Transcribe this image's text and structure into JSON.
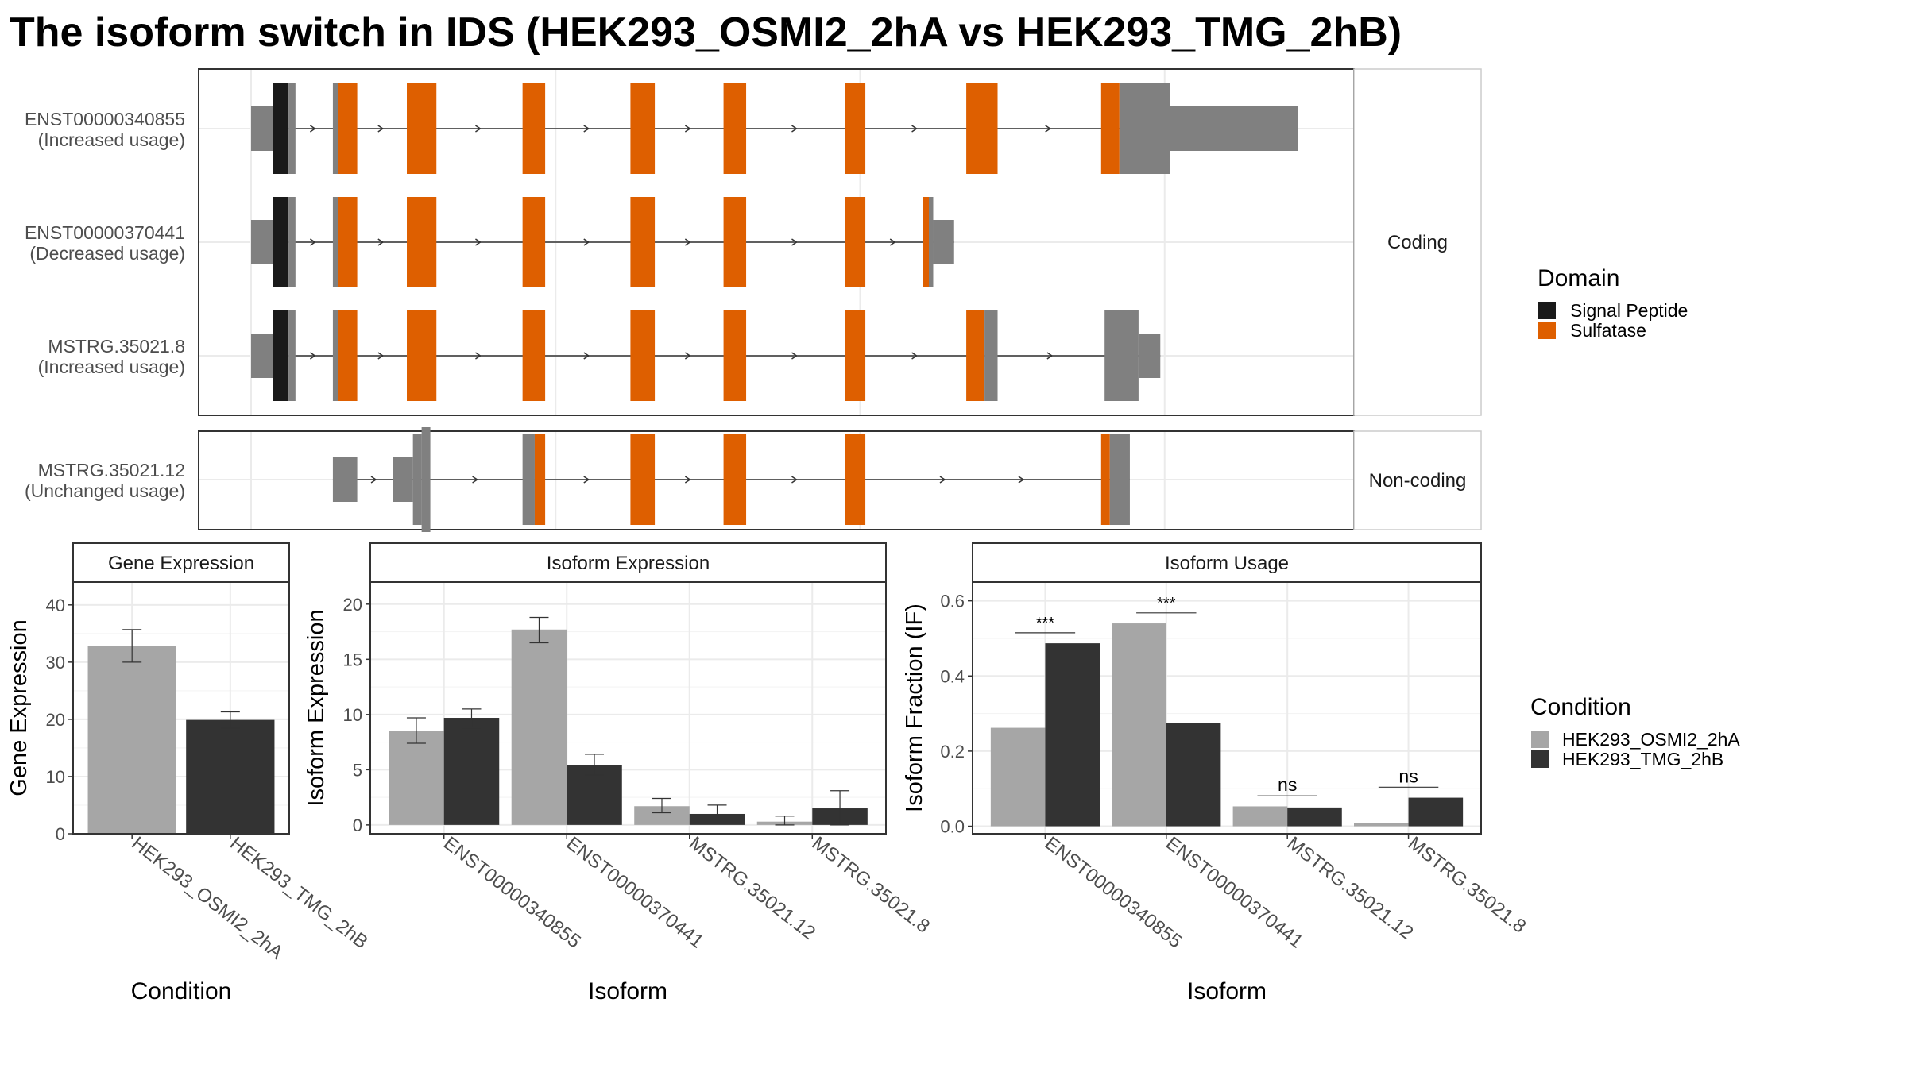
{
  "title": "The isoform switch in IDS (HEK293_OSMI2_2hA vs HEK293_TMG_2hB)",
  "colors": {
    "utr": "#808080",
    "signal_peptide": "#1a1a1a",
    "sulfatase": "#de5f00",
    "cond_a": "#a6a6a6",
    "cond_b": "#333333"
  },
  "structure": {
    "facets": [
      {
        "label": "Coding",
        "transcripts": [
          0,
          1,
          2
        ]
      },
      {
        "label": "Non-coding",
        "transcripts": [
          3
        ]
      }
    ],
    "transcripts": [
      {
        "id": "ENST00000340855",
        "usage": "(Increased usage)",
        "segments": [
          {
            "s": 0,
            "e": 2.5,
            "t": "utr",
            "h": "thin"
          },
          {
            "s": 2.5,
            "e": 4.3,
            "t": "signal_peptide",
            "h": "full"
          },
          {
            "s": 4.3,
            "e": 5.1,
            "t": "utr",
            "h": "full"
          },
          {
            "s": 9.4,
            "e": 10.0,
            "t": "utr",
            "h": "full"
          },
          {
            "s": 10.0,
            "e": 12.2,
            "t": "sulfatase",
            "h": "full"
          },
          {
            "s": 17.9,
            "e": 21.3,
            "t": "sulfatase",
            "h": "full"
          },
          {
            "s": 31.2,
            "e": 33.8,
            "t": "sulfatase",
            "h": "full"
          },
          {
            "s": 43.6,
            "e": 46.4,
            "t": "sulfatase",
            "h": "full"
          },
          {
            "s": 54.3,
            "e": 56.9,
            "t": "sulfatase",
            "h": "full"
          },
          {
            "s": 68.3,
            "e": 70.6,
            "t": "sulfatase",
            "h": "full"
          },
          {
            "s": 82.2,
            "e": 85.8,
            "t": "sulfatase",
            "h": "full"
          },
          {
            "s": 97.7,
            "e": 99.8,
            "t": "sulfatase",
            "h": "full"
          },
          {
            "s": 99.8,
            "e": 105.6,
            "t": "utr",
            "h": "full"
          },
          {
            "s": 105.6,
            "e": 120.3,
            "t": "utr",
            "h": "thin"
          }
        ]
      },
      {
        "id": "ENST00000370441",
        "usage": "(Decreased usage)",
        "segments": [
          {
            "s": 0,
            "e": 2.5,
            "t": "utr",
            "h": "thin"
          },
          {
            "s": 2.5,
            "e": 4.3,
            "t": "signal_peptide",
            "h": "full"
          },
          {
            "s": 4.3,
            "e": 5.1,
            "t": "utr",
            "h": "full"
          },
          {
            "s": 9.4,
            "e": 10.0,
            "t": "utr",
            "h": "full"
          },
          {
            "s": 10.0,
            "e": 12.2,
            "t": "sulfatase",
            "h": "full"
          },
          {
            "s": 17.9,
            "e": 21.3,
            "t": "sulfatase",
            "h": "full"
          },
          {
            "s": 31.2,
            "e": 33.8,
            "t": "sulfatase",
            "h": "full"
          },
          {
            "s": 43.6,
            "e": 46.4,
            "t": "sulfatase",
            "h": "full"
          },
          {
            "s": 54.3,
            "e": 56.9,
            "t": "sulfatase",
            "h": "full"
          },
          {
            "s": 68.3,
            "e": 70.6,
            "t": "sulfatase",
            "h": "full"
          },
          {
            "s": 77.2,
            "e": 77.9,
            "t": "sulfatase",
            "h": "full"
          },
          {
            "s": 77.9,
            "e": 78.4,
            "t": "utr",
            "h": "full"
          },
          {
            "s": 78.4,
            "e": 80.8,
            "t": "utr",
            "h": "thin"
          }
        ]
      },
      {
        "id": "MSTRG.35021.8",
        "usage": "(Increased usage)",
        "segments": [
          {
            "s": 0,
            "e": 2.5,
            "t": "utr",
            "h": "thin"
          },
          {
            "s": 2.5,
            "e": 4.3,
            "t": "signal_peptide",
            "h": "full"
          },
          {
            "s": 4.3,
            "e": 5.1,
            "t": "utr",
            "h": "full"
          },
          {
            "s": 9.4,
            "e": 10.0,
            "t": "utr",
            "h": "full"
          },
          {
            "s": 10.0,
            "e": 12.2,
            "t": "sulfatase",
            "h": "full"
          },
          {
            "s": 17.9,
            "e": 21.3,
            "t": "sulfatase",
            "h": "full"
          },
          {
            "s": 31.2,
            "e": 33.8,
            "t": "sulfatase",
            "h": "full"
          },
          {
            "s": 43.6,
            "e": 46.4,
            "t": "sulfatase",
            "h": "full"
          },
          {
            "s": 54.3,
            "e": 56.9,
            "t": "sulfatase",
            "h": "full"
          },
          {
            "s": 68.3,
            "e": 70.6,
            "t": "sulfatase",
            "h": "full"
          },
          {
            "s": 82.2,
            "e": 84.3,
            "t": "sulfatase",
            "h": "full"
          },
          {
            "s": 84.3,
            "e": 85.8,
            "t": "utr",
            "h": "full"
          },
          {
            "s": 98.1,
            "e": 102.0,
            "t": "utr",
            "h": "full"
          },
          {
            "s": 102.0,
            "e": 104.5,
            "t": "utr",
            "h": "thin"
          }
        ]
      },
      {
        "id": "MSTRG.35021.12",
        "usage": "(Unchanged usage)",
        "segments": [
          {
            "s": 9.4,
            "e": 12.2,
            "t": "utr",
            "h": "thin"
          },
          {
            "s": 16.3,
            "e": 18.6,
            "t": "utr",
            "h": "thin"
          },
          {
            "s": 18.6,
            "e": 19.6,
            "t": "utr",
            "h": "full"
          },
          {
            "s": 19.6,
            "e": 20.6,
            "t": "utr",
            "h": "tall"
          },
          {
            "s": 31.2,
            "e": 32.6,
            "t": "utr",
            "h": "full"
          },
          {
            "s": 32.6,
            "e": 33.8,
            "t": "sulfatase",
            "h": "full"
          },
          {
            "s": 43.6,
            "e": 46.4,
            "t": "sulfatase",
            "h": "full"
          },
          {
            "s": 54.3,
            "e": 56.9,
            "t": "sulfatase",
            "h": "full"
          },
          {
            "s": 68.3,
            "e": 70.6,
            "t": "sulfatase",
            "h": "full"
          },
          {
            "s": 97.7,
            "e": 98.7,
            "t": "sulfatase",
            "h": "full"
          },
          {
            "s": 98.7,
            "e": 101.0,
            "t": "utr",
            "h": "full"
          }
        ]
      }
    ]
  },
  "legends": {
    "domain": {
      "title": "Domain",
      "items": [
        {
          "label": "Signal Peptide",
          "color": "#1a1a1a"
        },
        {
          "label": "Sulfatase",
          "color": "#de5f00"
        }
      ]
    },
    "condition": {
      "title": "Condition",
      "items": [
        {
          "label": "HEK293_OSMI2_2hA",
          "color": "#a6a6a6"
        },
        {
          "label": "HEK293_TMG_2hB",
          "color": "#333333"
        }
      ]
    }
  },
  "chart_data": [
    {
      "type": "bar",
      "title": "Gene Expression",
      "xlabel": "Condition",
      "ylabel": "Gene Expression",
      "ylim": [
        0,
        44
      ],
      "yticks": [
        0,
        10,
        20,
        30,
        40
      ],
      "categories": [
        "HEK293_OSMI2_2hA",
        "HEK293_TMG_2hB"
      ],
      "values": [
        32.8,
        19.9
      ],
      "error_low": [
        30.0,
        18.5
      ],
      "error_high": [
        35.7,
        21.3
      ]
    },
    {
      "type": "bar",
      "title": "Isoform Expression",
      "xlabel": "Isoform",
      "ylabel": "Isoform Expression",
      "ylim": [
        -0.8,
        22
      ],
      "yticks": [
        0,
        5,
        10,
        15,
        20
      ],
      "categories": [
        "ENST00000340855",
        "ENST00000370441",
        "MSTRG.35021.12",
        "MSTRG.35021.8"
      ],
      "series": [
        {
          "name": "HEK293_OSMI2_2hA",
          "values": [
            8.5,
            17.7,
            1.7,
            0.3
          ],
          "error_low": [
            7.4,
            16.5,
            1.1,
            0.0
          ],
          "error_high": [
            9.7,
            18.8,
            2.4,
            0.8
          ]
        },
        {
          "name": "HEK293_TMG_2hB",
          "values": [
            9.7,
            5.4,
            1.0,
            1.5
          ],
          "error_low": [
            8.8,
            4.5,
            0.2,
            0.0
          ],
          "error_high": [
            10.5,
            6.4,
            1.8,
            3.1
          ]
        }
      ]
    },
    {
      "type": "bar",
      "title": "Isoform Usage",
      "xlabel": "Isoform",
      "ylabel": "Isoform Fraction (IF)",
      "ylim": [
        -0.02,
        0.65
      ],
      "yticks": [
        "0.0",
        "0.2",
        "0.4",
        "0.6"
      ],
      "categories": [
        "ENST00000340855",
        "ENST00000370441",
        "MSTRG.35021.12",
        "MSTRG.35021.8"
      ],
      "series": [
        {
          "name": "HEK293_OSMI2_2hA",
          "values": [
            0.262,
            0.54,
            0.053,
            0.008
          ]
        },
        {
          "name": "HEK293_TMG_2hB",
          "values": [
            0.487,
            0.275,
            0.05,
            0.076
          ]
        }
      ],
      "significance": [
        {
          "label": "***",
          "y": 0.515
        },
        {
          "label": "***",
          "y": 0.568
        },
        {
          "label": "ns",
          "y": 0.081
        },
        {
          "label": "ns",
          "y": 0.104
        }
      ]
    }
  ]
}
